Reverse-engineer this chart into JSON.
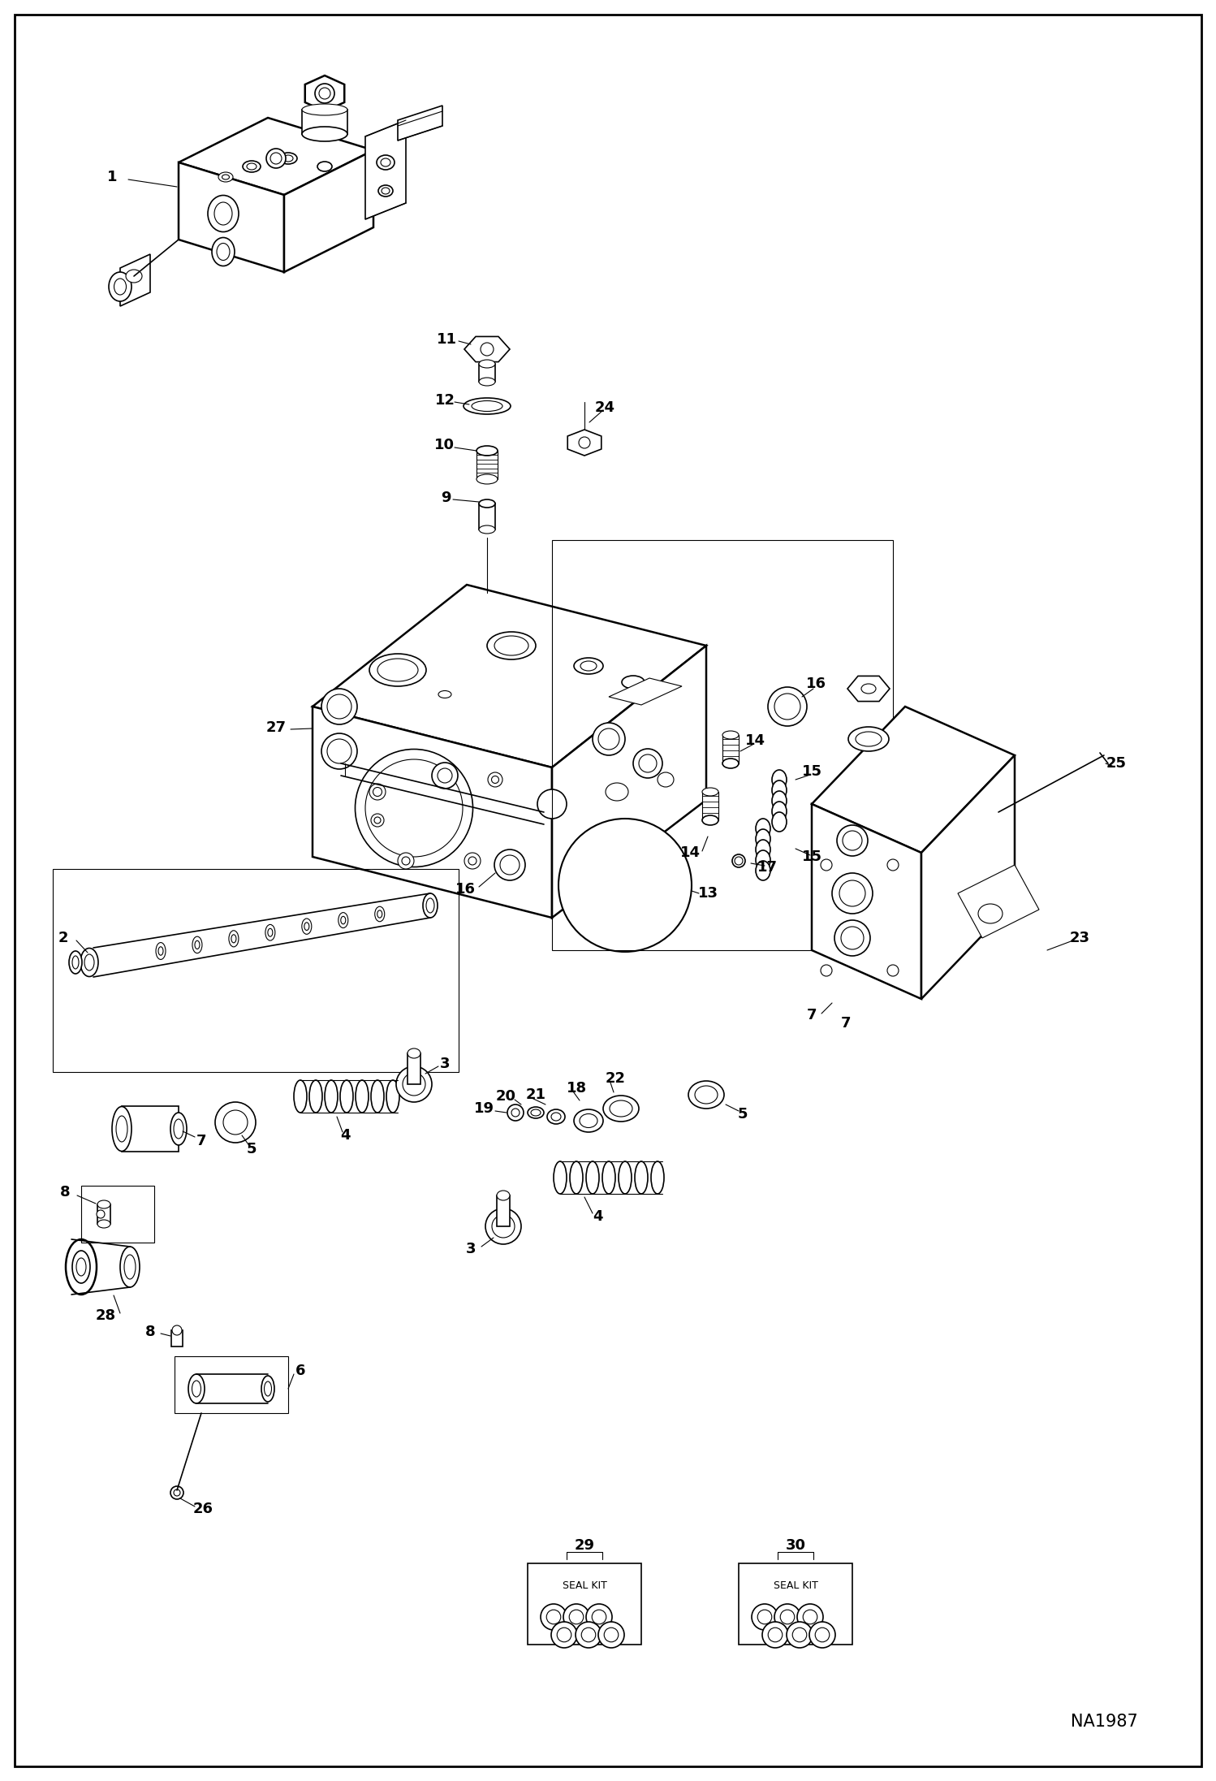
{
  "bg_color": "#ffffff",
  "line_color": "#000000",
  "figure_id": "NA1987",
  "lw_thin": 0.8,
  "lw_med": 1.2,
  "lw_thick": 1.8,
  "font_label": 13,
  "font_id": 15
}
